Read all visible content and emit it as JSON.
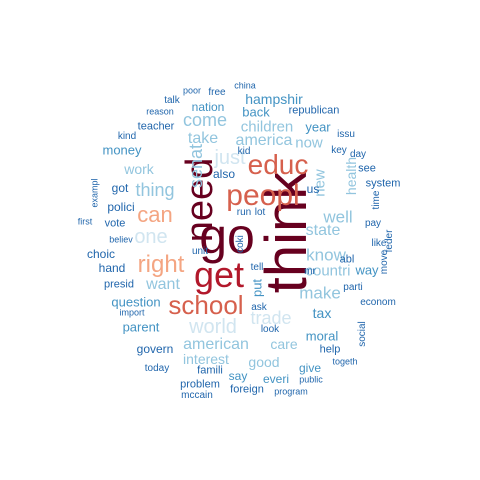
{
  "palette": {
    "maroon": "#67001f",
    "red": "#b2182b",
    "salmon": "#d6604d",
    "peach": "#f4a582",
    "pale": "#d1e5f0",
    "lightblue": "#92c5de",
    "midblue": "#4393c3",
    "darkblue": "#2166ac"
  },
  "words": [
    {
      "text": "think",
      "color": "maroon"
    },
    {
      "text": "go",
      "color": "maroon"
    },
    {
      "text": "need",
      "color": "maroon"
    },
    {
      "text": "get",
      "color": "red"
    },
    {
      "text": "peopl",
      "color": "salmon"
    },
    {
      "text": "educ",
      "color": "salmon"
    },
    {
      "text": "school",
      "color": "salmon"
    },
    {
      "text": "right",
      "color": "peach"
    },
    {
      "text": "can",
      "color": "peach"
    },
    {
      "text": "one",
      "color": "pale"
    },
    {
      "text": "just",
      "color": "pale"
    },
    {
      "text": "world",
      "color": "pale"
    },
    {
      "text": "trade",
      "color": "pale"
    },
    {
      "text": "thing",
      "color": "lightblue"
    },
    {
      "text": "senat",
      "color": "lightblue"
    },
    {
      "text": "come",
      "color": "lightblue"
    },
    {
      "text": "take",
      "color": "lightblue"
    },
    {
      "text": "america",
      "color": "lightblue"
    },
    {
      "text": "children",
      "color": "lightblue"
    },
    {
      "text": "now",
      "color": "lightblue"
    },
    {
      "text": "new",
      "color": "lightblue"
    },
    {
      "text": "well",
      "color": "lightblue"
    },
    {
      "text": "state",
      "color": "lightblue"
    },
    {
      "text": "know",
      "color": "lightblue"
    },
    {
      "text": "countri",
      "color": "lightblue"
    },
    {
      "text": "make",
      "color": "lightblue"
    },
    {
      "text": "want",
      "color": "lightblue"
    },
    {
      "text": "american",
      "color": "lightblue"
    },
    {
      "text": "care",
      "color": "lightblue"
    },
    {
      "text": "interest",
      "color": "lightblue"
    },
    {
      "text": "good",
      "color": "lightblue"
    },
    {
      "text": "work",
      "color": "lightblue"
    },
    {
      "text": "health",
      "color": "lightblue"
    },
    {
      "text": "tax",
      "color": "midblue"
    },
    {
      "text": "moral",
      "color": "midblue"
    },
    {
      "text": "way",
      "color": "midblue"
    },
    {
      "text": "hampshir",
      "color": "midblue"
    },
    {
      "text": "back",
      "color": "midblue"
    },
    {
      "text": "nation",
      "color": "midblue"
    },
    {
      "text": "money",
      "color": "midblue"
    },
    {
      "text": "year",
      "color": "midblue"
    },
    {
      "text": "parent",
      "color": "midblue"
    },
    {
      "text": "question",
      "color": "midblue"
    },
    {
      "text": "say",
      "color": "midblue"
    },
    {
      "text": "everi",
      "color": "midblue"
    },
    {
      "text": "give",
      "color": "midblue"
    },
    {
      "text": "put",
      "color": "midblue"
    },
    {
      "text": "choic",
      "color": "darkblue"
    },
    {
      "text": "got",
      "color": "darkblue"
    },
    {
      "text": "also",
      "color": "darkblue"
    },
    {
      "text": "teacher",
      "color": "darkblue"
    },
    {
      "text": "republican",
      "color": "darkblue"
    },
    {
      "text": "polici",
      "color": "darkblue"
    },
    {
      "text": "hand",
      "color": "darkblue"
    },
    {
      "text": "presid",
      "color": "darkblue"
    },
    {
      "text": "vote",
      "color": "darkblue"
    },
    {
      "text": "govern",
      "color": "darkblue"
    },
    {
      "text": "help",
      "color": "darkblue"
    },
    {
      "text": "famili",
      "color": "darkblue"
    },
    {
      "text": "problem",
      "color": "darkblue"
    },
    {
      "text": "foreign",
      "color": "darkblue"
    },
    {
      "text": "today",
      "color": "darkblue"
    },
    {
      "text": "kid",
      "color": "darkblue"
    },
    {
      "text": "key",
      "color": "darkblue"
    },
    {
      "text": "us",
      "color": "darkblue"
    },
    {
      "text": "see",
      "color": "darkblue"
    },
    {
      "text": "system",
      "color": "darkblue"
    },
    {
      "text": "abl",
      "color": "darkblue"
    },
    {
      "text": "pay",
      "color": "darkblue"
    },
    {
      "text": "like",
      "color": "darkblue"
    },
    {
      "text": "move",
      "color": "darkblue"
    },
    {
      "text": "time",
      "color": "darkblue"
    },
    {
      "text": "feder",
      "color": "darkblue"
    },
    {
      "text": "econom",
      "color": "darkblue"
    },
    {
      "text": "social",
      "color": "darkblue"
    },
    {
      "text": "parti",
      "color": "darkblue"
    },
    {
      "text": "issu",
      "color": "darkblue"
    },
    {
      "text": "day",
      "color": "darkblue"
    },
    {
      "text": "mr",
      "color": "darkblue"
    },
    {
      "text": "run",
      "color": "darkblue"
    },
    {
      "text": "lot",
      "color": "darkblue"
    },
    {
      "text": "coki",
      "color": "darkblue"
    },
    {
      "text": "unit",
      "color": "darkblue"
    },
    {
      "text": "tell",
      "color": "darkblue"
    },
    {
      "text": "ask",
      "color": "darkblue"
    },
    {
      "text": "look",
      "color": "darkblue"
    },
    {
      "text": "public",
      "color": "darkblue"
    },
    {
      "text": "togeth",
      "color": "darkblue"
    },
    {
      "text": "program",
      "color": "darkblue"
    },
    {
      "text": "mccain",
      "color": "darkblue"
    },
    {
      "text": "import",
      "color": "darkblue"
    },
    {
      "text": "believ",
      "color": "darkblue"
    },
    {
      "text": "first",
      "color": "darkblue"
    },
    {
      "text": "exampl",
      "color": "darkblue"
    },
    {
      "text": "kind",
      "color": "darkblue"
    },
    {
      "text": "reason",
      "color": "darkblue"
    },
    {
      "text": "talk",
      "color": "darkblue"
    },
    {
      "text": "poor",
      "color": "darkblue"
    },
    {
      "text": "free",
      "color": "darkblue"
    },
    {
      "text": "china",
      "color": "darkblue"
    }
  ]
}
